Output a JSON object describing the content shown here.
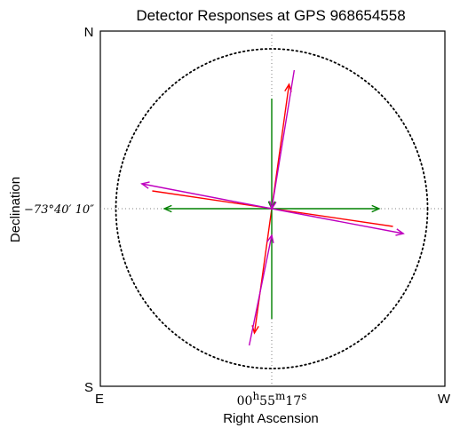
{
  "chart_data": {
    "type": "vector-field",
    "title": "Detector Responses at GPS 968654558",
    "xlabel": "Right Ascension",
    "ylabel": "Declination",
    "corner_labels": {
      "top_left": "N",
      "bottom_left_v": "S",
      "bottom_left_h": "E",
      "bottom_right": "W"
    },
    "x_tick_label": {
      "h": "00",
      "h_unit": "h",
      "m": "55",
      "m_unit": "m",
      "s": "17",
      "s_unit": "s"
    },
    "y_tick_label": "−73°40′ 10″",
    "xlim": [
      -1,
      1
    ],
    "ylim": [
      -1,
      1
    ],
    "circle_radius": 0.9,
    "grid": "crosshair-dotted",
    "colors": {
      "red": "#ff0000",
      "green": "#008000",
      "magenta": "#bf00bf",
      "circle": "#000000",
      "crosshair": "#808080"
    },
    "series": [
      {
        "color": "#ff0000",
        "segments": [
          {
            "from": [
              0,
              0
            ],
            "to": [
              0.1,
              0.7
            ],
            "arrow": true
          },
          {
            "from": [
              0.7,
              -0.1
            ],
            "to": [
              -0.69,
              0.1
            ],
            "arrow": false
          },
          {
            "from": [
              0,
              0
            ],
            "to": [
              -0.1,
              -0.7
            ],
            "arrow": true
          }
        ]
      },
      {
        "color": "#008000",
        "segments": [
          {
            "from": [
              0,
              0.62
            ],
            "to": [
              0,
              0.0
            ],
            "arrow": true
          },
          {
            "from": [
              0,
              0
            ],
            "to": [
              0.62,
              0
            ],
            "arrow": true
          },
          {
            "from": [
              0,
              0
            ],
            "to": [
              -0.62,
              0
            ],
            "arrow": true
          },
          {
            "from": [
              0,
              -0.62
            ],
            "to": [
              0,
              0.0
            ],
            "arrow": false
          }
        ]
      },
      {
        "color": "#bf00bf",
        "segments": [
          {
            "from": [
              0.13,
              0.78
            ],
            "to": [
              0.0,
              0.0
            ],
            "arrow": true
          },
          {
            "from": [
              0,
              0
            ],
            "to": [
              0.76,
              -0.14
            ],
            "arrow": true
          },
          {
            "from": [
              0,
              0
            ],
            "to": [
              -0.75,
              0.14
            ],
            "arrow": true
          },
          {
            "from": [
              -0.13,
              -0.77
            ],
            "to": [
              0.0,
              -0.15
            ],
            "arrow": true
          }
        ]
      }
    ]
  }
}
